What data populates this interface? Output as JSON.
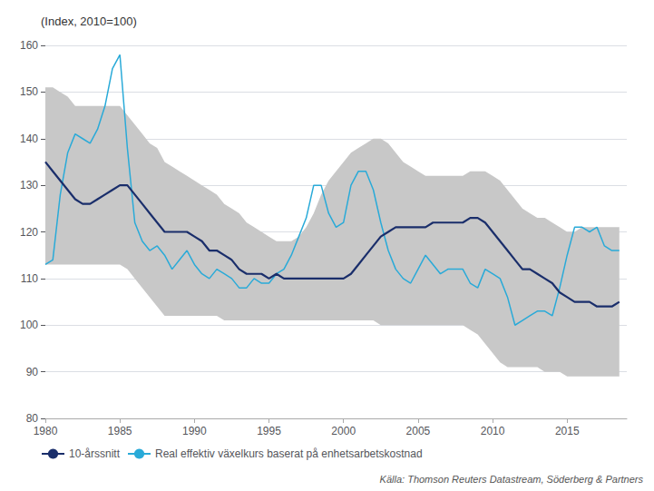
{
  "chart_data": {
    "type": "line",
    "title": "(Index, 2010=100)",
    "source": "Källa: Thomson Reuters Datastream, Söderberg & Partners",
    "background_color": "#ffffff",
    "xlim": [
      1980,
      2019
    ],
    "xticks": [
      1980,
      1985,
      1990,
      1995,
      2000,
      2005,
      2010,
      2015
    ],
    "ylim": [
      80,
      160
    ],
    "yticks": [
      80,
      90,
      100,
      110,
      120,
      130,
      140,
      150,
      160
    ],
    "grid": "y",
    "legend": "lower left",
    "x": [
      1980.0,
      1980.5,
      1981.0,
      1981.5,
      1982.0,
      1982.5,
      1983.0,
      1983.5,
      1984.0,
      1984.5,
      1985.0,
      1985.5,
      1986.0,
      1986.5,
      1987.0,
      1987.5,
      1988.0,
      1988.5,
      1989.0,
      1989.5,
      1990.0,
      1990.5,
      1991.0,
      1991.5,
      1992.0,
      1992.5,
      1993.0,
      1993.5,
      1994.0,
      1994.5,
      1995.0,
      1995.5,
      1996.0,
      1996.5,
      1997.0,
      1997.5,
      1998.0,
      1998.5,
      1999.0,
      1999.5,
      2000.0,
      2000.5,
      2001.0,
      2001.5,
      2002.0,
      2002.5,
      2003.0,
      2003.5,
      2004.0,
      2004.5,
      2005.0,
      2005.5,
      2006.0,
      2006.5,
      2007.0,
      2007.5,
      2008.0,
      2008.5,
      2009.0,
      2009.5,
      2010.0,
      2010.5,
      2011.0,
      2011.5,
      2012.0,
      2012.5,
      2013.0,
      2013.5,
      2014.0,
      2014.5,
      2015.0,
      2015.5,
      2016.0,
      2016.5,
      2017.0,
      2017.5,
      2018.0,
      2018.5
    ],
    "band": {
      "color": "#c8c8c8",
      "upper": [
        151,
        151,
        150,
        149,
        147,
        147,
        147,
        147,
        147,
        147,
        147,
        145,
        143,
        141,
        139,
        138,
        135,
        134,
        133,
        132,
        131,
        130,
        129,
        128,
        126,
        125,
        124,
        122,
        121,
        120,
        119,
        118,
        118,
        118,
        119,
        121,
        124,
        128,
        131,
        133,
        135,
        137,
        138,
        139,
        140,
        140,
        139,
        137,
        135,
        134,
        133,
        132,
        132,
        132,
        132,
        132,
        132,
        133,
        133,
        133,
        132,
        131,
        129,
        127,
        125,
        124,
        123,
        123,
        122,
        121,
        120,
        120,
        121,
        121,
        121,
        121,
        121,
        121
      ],
      "lower": [
        113,
        113,
        113,
        113,
        113,
        113,
        113,
        113,
        113,
        113,
        113,
        112,
        110,
        108,
        106,
        104,
        102,
        102,
        102,
        102,
        102,
        102,
        102,
        102,
        101,
        101,
        101,
        101,
        101,
        101,
        101,
        101,
        101,
        101,
        101,
        101,
        101,
        101,
        101,
        101,
        101,
        101,
        101,
        101,
        101,
        100,
        100,
        100,
        100,
        100,
        100,
        100,
        100,
        100,
        100,
        100,
        100,
        99,
        98,
        96,
        94,
        92,
        91,
        91,
        91,
        91,
        91,
        90,
        90,
        90,
        89,
        89,
        89,
        89,
        89,
        89,
        89,
        89
      ]
    },
    "series": [
      {
        "name": "10-årssnitt",
        "color": "#1a2e6b",
        "values": [
          135,
          133,
          131,
          129,
          127,
          126,
          126,
          127,
          128,
          129,
          130,
          130,
          128,
          126,
          124,
          122,
          120,
          120,
          120,
          120,
          119,
          118,
          116,
          116,
          115,
          114,
          112,
          111,
          111,
          111,
          110,
          111,
          110,
          110,
          110,
          110,
          110,
          110,
          110,
          110,
          110,
          111,
          113,
          115,
          117,
          119,
          120,
          121,
          121,
          121,
          121,
          121,
          122,
          122,
          122,
          122,
          122,
          123,
          123,
          122,
          120,
          118,
          116,
          114,
          112,
          112,
          111,
          110,
          109,
          107,
          106,
          105,
          105,
          105,
          104,
          104,
          104,
          105
        ]
      },
      {
        "name": "Real effektiv växelkurs baserat på enhetsarbetskostnad",
        "color": "#29aad8",
        "values": [
          113,
          114,
          128,
          137,
          141,
          140,
          139,
          142,
          147,
          155,
          158,
          138,
          122,
          118,
          116,
          117,
          115,
          112,
          114,
          116,
          113,
          111,
          110,
          112,
          111,
          110,
          108,
          108,
          110,
          109,
          109,
          111,
          112,
          115,
          119,
          123,
          130,
          130,
          124,
          121,
          122,
          130,
          133,
          133,
          129,
          122,
          116,
          112,
          110,
          109,
          112,
          115,
          113,
          111,
          112,
          112,
          112,
          109,
          108,
          112,
          111,
          110,
          106,
          100,
          101,
          102,
          103,
          103,
          102,
          108,
          115,
          121,
          121,
          120,
          121,
          117,
          116,
          116
        ]
      }
    ]
  }
}
